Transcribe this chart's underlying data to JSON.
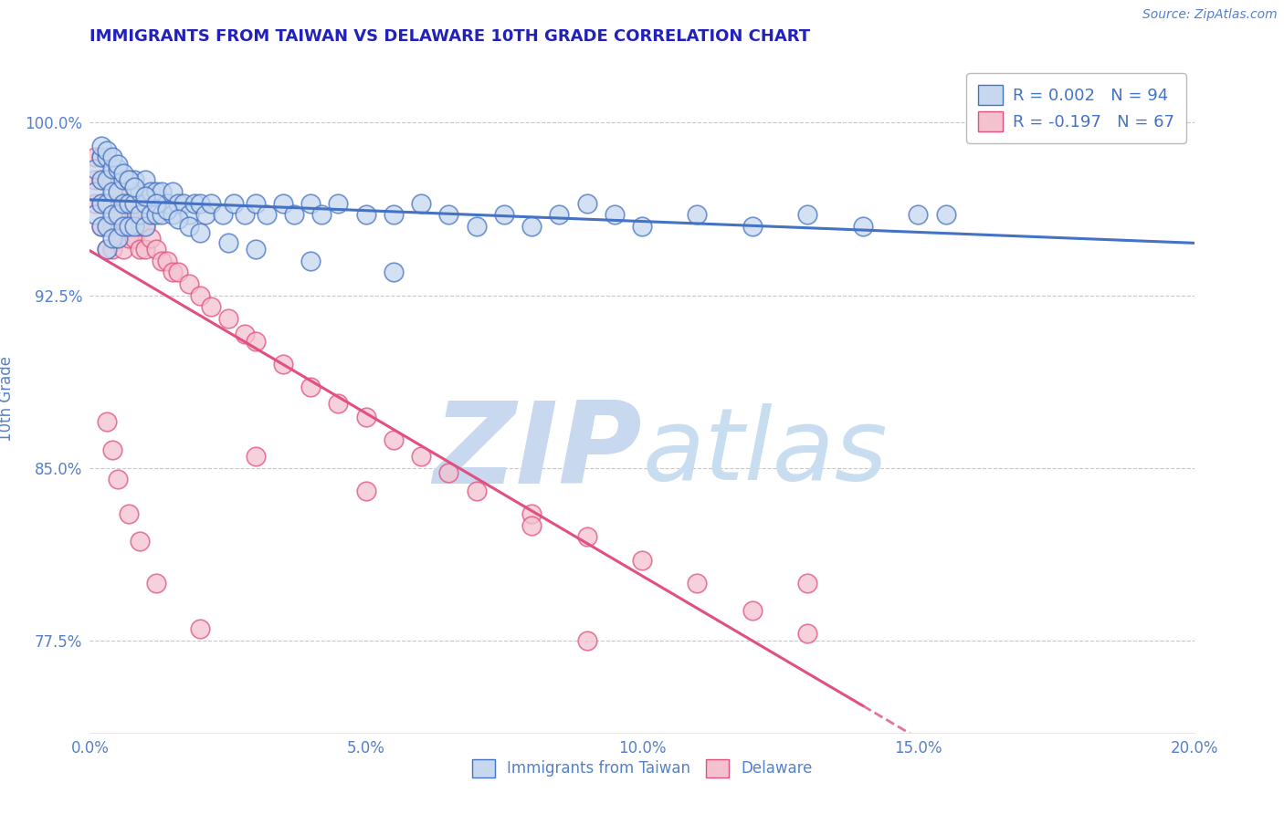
{
  "title": "IMMIGRANTS FROM TAIWAN VS DELAWARE 10TH GRADE CORRELATION CHART",
  "source_text": "Source: ZipAtlas.com",
  "ylabel": "10th Grade",
  "xlim": [
    0.0,
    0.2
  ],
  "ylim": [
    0.735,
    1.025
  ],
  "xticks": [
    0.0,
    0.05,
    0.1,
    0.15,
    0.2
  ],
  "xtick_labels": [
    "0.0%",
    "5.0%",
    "10.0%",
    "15.0%",
    "20.0%"
  ],
  "yticks": [
    0.775,
    0.85,
    0.925,
    1.0
  ],
  "ytick_labels": [
    "77.5%",
    "85.0%",
    "92.5%",
    "100.0%"
  ],
  "legend_R1": "R = 0.002",
  "legend_N1": "N = 94",
  "legend_R2": "R = -0.197",
  "legend_N2": "N = 67",
  "blue_fill": "#c5d8f0",
  "blue_edge": "#4472c4",
  "pink_fill": "#f4c2cf",
  "pink_edge": "#e05080",
  "blue_line": "#4472c4",
  "pink_line": "#e05080",
  "title_color": "#2222bb",
  "axis_color": "#5580cc",
  "tick_color": "#5580cc",
  "grid_color": "#c8c8c8",
  "watermark_color": "#d5e4f5",
  "watermark_text": "ZIPatlas",
  "taiwan_x": [
    0.001,
    0.001,
    0.001,
    0.002,
    0.002,
    0.002,
    0.002,
    0.003,
    0.003,
    0.003,
    0.003,
    0.003,
    0.004,
    0.004,
    0.004,
    0.004,
    0.005,
    0.005,
    0.005,
    0.005,
    0.006,
    0.006,
    0.006,
    0.007,
    0.007,
    0.007,
    0.008,
    0.008,
    0.008,
    0.009,
    0.009,
    0.01,
    0.01,
    0.01,
    0.011,
    0.011,
    0.012,
    0.012,
    0.013,
    0.013,
    0.014,
    0.015,
    0.015,
    0.016,
    0.017,
    0.018,
    0.019,
    0.02,
    0.021,
    0.022,
    0.024,
    0.026,
    0.028,
    0.03,
    0.032,
    0.035,
    0.037,
    0.04,
    0.042,
    0.045,
    0.05,
    0.055,
    0.06,
    0.065,
    0.07,
    0.075,
    0.08,
    0.085,
    0.09,
    0.095,
    0.1,
    0.11,
    0.12,
    0.13,
    0.14,
    0.15,
    0.155,
    0.002,
    0.003,
    0.004,
    0.005,
    0.006,
    0.007,
    0.008,
    0.01,
    0.012,
    0.014,
    0.016,
    0.018,
    0.02,
    0.025,
    0.03,
    0.04,
    0.055
  ],
  "taiwan_y": [
    0.98,
    0.97,
    0.96,
    0.985,
    0.975,
    0.965,
    0.955,
    0.985,
    0.975,
    0.965,
    0.955,
    0.945,
    0.98,
    0.97,
    0.96,
    0.95,
    0.98,
    0.97,
    0.96,
    0.95,
    0.975,
    0.965,
    0.955,
    0.975,
    0.965,
    0.955,
    0.975,
    0.965,
    0.955,
    0.97,
    0.96,
    0.975,
    0.965,
    0.955,
    0.97,
    0.96,
    0.97,
    0.96,
    0.97,
    0.96,
    0.965,
    0.97,
    0.96,
    0.965,
    0.965,
    0.96,
    0.965,
    0.965,
    0.96,
    0.965,
    0.96,
    0.965,
    0.96,
    0.965,
    0.96,
    0.965,
    0.96,
    0.965,
    0.96,
    0.965,
    0.96,
    0.96,
    0.965,
    0.96,
    0.955,
    0.96,
    0.955,
    0.96,
    0.965,
    0.96,
    0.955,
    0.96,
    0.955,
    0.96,
    0.955,
    0.96,
    0.96,
    0.99,
    0.988,
    0.985,
    0.982,
    0.978,
    0.975,
    0.972,
    0.968,
    0.965,
    0.962,
    0.958,
    0.955,
    0.952,
    0.948,
    0.945,
    0.94,
    0.935
  ],
  "delaware_x": [
    0.001,
    0.001,
    0.001,
    0.002,
    0.002,
    0.002,
    0.002,
    0.003,
    0.003,
    0.003,
    0.003,
    0.004,
    0.004,
    0.004,
    0.004,
    0.005,
    0.005,
    0.005,
    0.006,
    0.006,
    0.006,
    0.007,
    0.007,
    0.008,
    0.008,
    0.009,
    0.009,
    0.01,
    0.01,
    0.011,
    0.012,
    0.013,
    0.014,
    0.015,
    0.016,
    0.018,
    0.02,
    0.022,
    0.025,
    0.028,
    0.03,
    0.035,
    0.04,
    0.045,
    0.05,
    0.055,
    0.06,
    0.065,
    0.07,
    0.08,
    0.09,
    0.1,
    0.11,
    0.12,
    0.13,
    0.003,
    0.004,
    0.005,
    0.007,
    0.009,
    0.012,
    0.02,
    0.03,
    0.05,
    0.08,
    0.13,
    0.09
  ],
  "delaware_y": [
    0.985,
    0.975,
    0.965,
    0.985,
    0.975,
    0.965,
    0.955,
    0.975,
    0.965,
    0.955,
    0.945,
    0.975,
    0.965,
    0.955,
    0.945,
    0.97,
    0.96,
    0.95,
    0.965,
    0.955,
    0.945,
    0.96,
    0.95,
    0.96,
    0.95,
    0.955,
    0.945,
    0.955,
    0.945,
    0.95,
    0.945,
    0.94,
    0.94,
    0.935,
    0.935,
    0.93,
    0.925,
    0.92,
    0.915,
    0.908,
    0.905,
    0.895,
    0.885,
    0.878,
    0.872,
    0.862,
    0.855,
    0.848,
    0.84,
    0.83,
    0.82,
    0.81,
    0.8,
    0.788,
    0.778,
    0.87,
    0.858,
    0.845,
    0.83,
    0.818,
    0.8,
    0.78,
    0.855,
    0.84,
    0.825,
    0.8,
    0.775
  ]
}
